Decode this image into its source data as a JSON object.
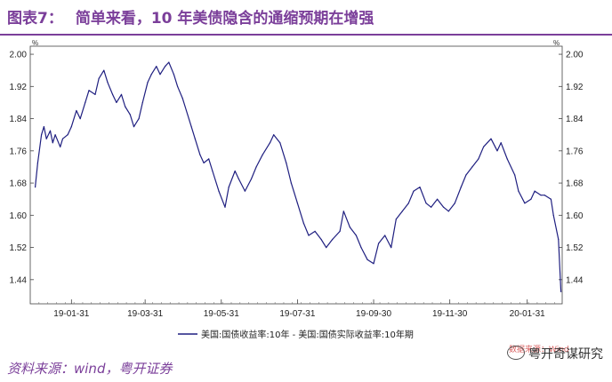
{
  "header": {
    "figure_label": "图表7：",
    "title": "简单来看，10 年美债隐含的通缩预期在增强"
  },
  "source": "资料来源：wind，粤开证券",
  "watermark": "粤开奇谋研究",
  "stamp": "数据来源：Wind",
  "chart_data": {
    "type": "line",
    "unit_left": "%",
    "unit_right": "%",
    "ylim": [
      1.38,
      2.02
    ],
    "yticks": [
      1.44,
      1.52,
      1.6,
      1.68,
      1.76,
      1.84,
      1.92,
      2.0
    ],
    "ytick_labels": [
      "1.44",
      "1.52",
      "1.60",
      "1.68",
      "1.76",
      "1.84",
      "1.92",
      "2.00"
    ],
    "xlim": [
      "2018-12-29",
      "2020-02-28"
    ],
    "xticks": [
      "2019-01-31",
      "2019-03-31",
      "2019-05-31",
      "2019-07-31",
      "2019-09-30",
      "2019-11-30",
      "2020-01-31"
    ],
    "xtick_labels": [
      "19-01-31",
      "19-03-31",
      "19-05-31",
      "19-07-31",
      "19-09-30",
      "19-11-30",
      "20-01-31"
    ],
    "grid": false,
    "legend_position": "bottom",
    "color": "#1f1f80",
    "series": [
      {
        "name": "美国:国债收益率:10年 - 美国:国债实际收益率:10年期",
        "x": [
          "2019-01-02",
          "2019-01-04",
          "2019-01-07",
          "2019-01-09",
          "2019-01-11",
          "2019-01-14",
          "2019-01-16",
          "2019-01-18",
          "2019-01-22",
          "2019-01-24",
          "2019-01-28",
          "2019-01-31",
          "2019-02-04",
          "2019-02-07",
          "2019-02-11",
          "2019-02-14",
          "2019-02-19",
          "2019-02-22",
          "2019-02-26",
          "2019-03-01",
          "2019-03-05",
          "2019-03-08",
          "2019-03-12",
          "2019-03-15",
          "2019-03-19",
          "2019-03-22",
          "2019-03-26",
          "2019-03-29",
          "2019-04-02",
          "2019-04-05",
          "2019-04-09",
          "2019-04-12",
          "2019-04-16",
          "2019-04-19",
          "2019-04-23",
          "2019-04-26",
          "2019-04-30",
          "2019-05-03",
          "2019-05-07",
          "2019-05-10",
          "2019-05-14",
          "2019-05-17",
          "2019-05-21",
          "2019-05-24",
          "2019-05-29",
          "2019-06-03",
          "2019-06-06",
          "2019-06-11",
          "2019-06-14",
          "2019-06-19",
          "2019-06-24",
          "2019-06-28",
          "2019-07-03",
          "2019-07-09",
          "2019-07-12",
          "2019-07-17",
          "2019-07-22",
          "2019-07-26",
          "2019-07-31",
          "2019-08-05",
          "2019-08-09",
          "2019-08-14",
          "2019-08-19",
          "2019-08-23",
          "2019-08-28",
          "2019-09-03",
          "2019-09-06",
          "2019-09-11",
          "2019-09-16",
          "2019-09-20",
          "2019-09-25",
          "2019-09-30",
          "2019-10-04",
          "2019-10-09",
          "2019-10-14",
          "2019-10-18",
          "2019-10-23",
          "2019-10-28",
          "2019-11-01",
          "2019-11-06",
          "2019-11-11",
          "2019-11-15",
          "2019-11-20",
          "2019-11-25",
          "2019-11-29",
          "2019-12-04",
          "2019-12-09",
          "2019-12-13",
          "2019-12-18",
          "2019-12-23",
          "2019-12-27",
          "2020-01-02",
          "2020-01-07",
          "2020-01-10",
          "2020-01-15",
          "2020-01-21",
          "2020-01-24",
          "2020-01-29",
          "2020-02-03",
          "2020-02-06",
          "2020-02-11",
          "2020-02-14",
          "2020-02-19",
          "2020-02-21",
          "2020-02-25",
          "2020-02-27"
        ],
        "values": [
          1.67,
          1.73,
          1.8,
          1.82,
          1.79,
          1.81,
          1.78,
          1.8,
          1.77,
          1.79,
          1.8,
          1.82,
          1.86,
          1.84,
          1.88,
          1.91,
          1.9,
          1.94,
          1.96,
          1.93,
          1.9,
          1.88,
          1.9,
          1.87,
          1.85,
          1.82,
          1.84,
          1.88,
          1.93,
          1.95,
          1.97,
          1.95,
          1.97,
          1.98,
          1.95,
          1.92,
          1.89,
          1.86,
          1.82,
          1.79,
          1.75,
          1.73,
          1.74,
          1.71,
          1.66,
          1.62,
          1.67,
          1.71,
          1.69,
          1.66,
          1.69,
          1.72,
          1.75,
          1.78,
          1.8,
          1.78,
          1.73,
          1.68,
          1.63,
          1.58,
          1.55,
          1.56,
          1.54,
          1.52,
          1.54,
          1.56,
          1.61,
          1.57,
          1.55,
          1.52,
          1.49,
          1.48,
          1.53,
          1.55,
          1.52,
          1.59,
          1.61,
          1.63,
          1.66,
          1.67,
          1.63,
          1.62,
          1.64,
          1.62,
          1.61,
          1.63,
          1.67,
          1.7,
          1.72,
          1.74,
          1.77,
          1.79,
          1.76,
          1.78,
          1.74,
          1.7,
          1.66,
          1.63,
          1.64,
          1.66,
          1.65,
          1.65,
          1.64,
          1.6,
          1.54,
          1.41
        ]
      }
    ]
  }
}
